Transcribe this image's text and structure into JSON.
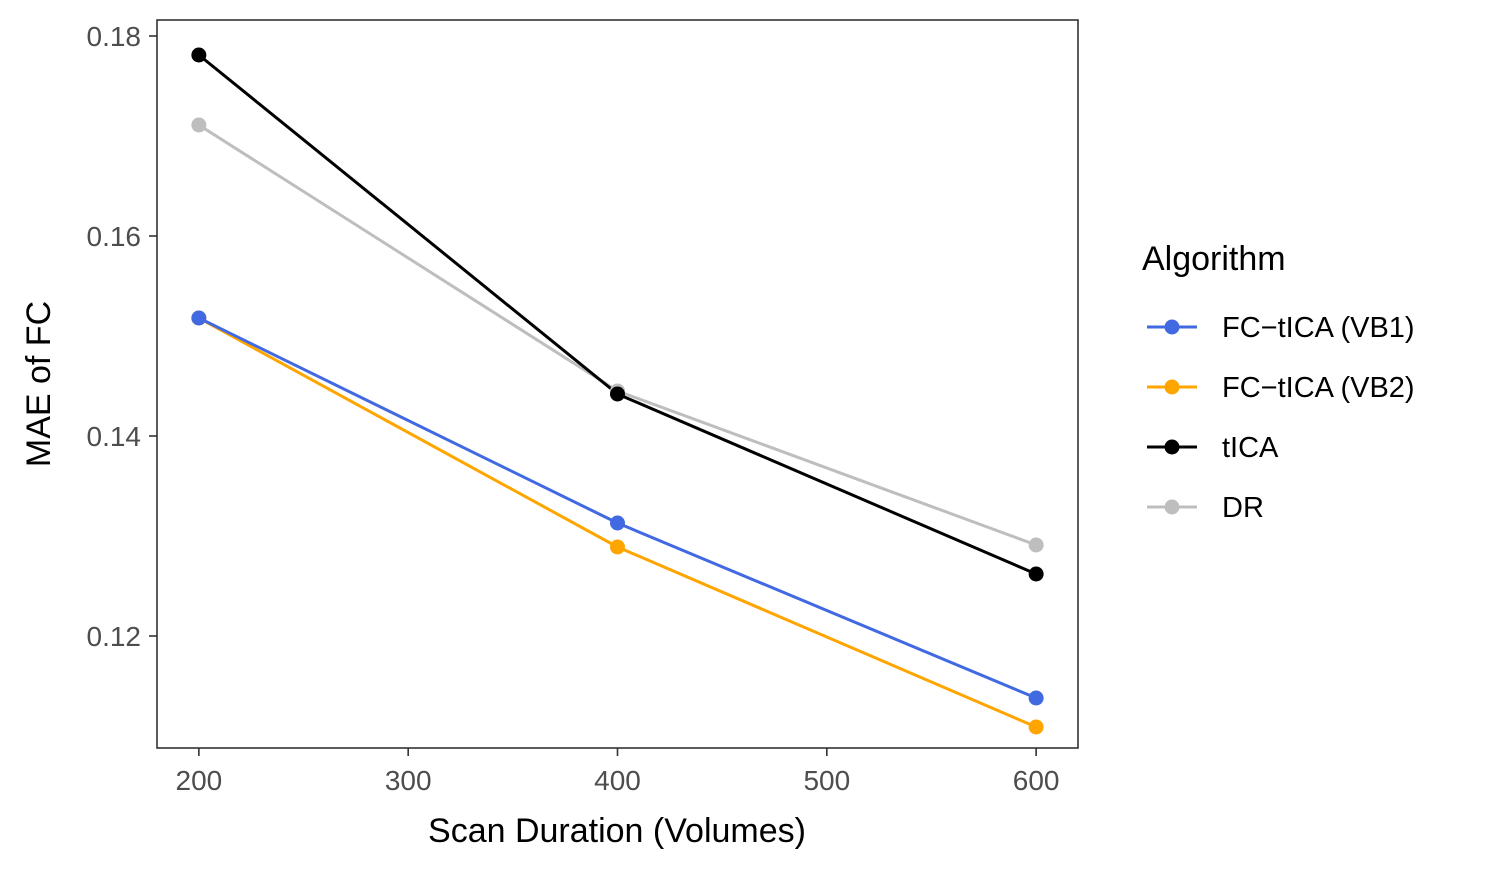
{
  "chart_data": {
    "type": "line",
    "title": "",
    "xlabel": "Scan Duration (Volumes)",
    "ylabel": "MAE of FC",
    "x": [
      200,
      400,
      600
    ],
    "xlim": [
      180,
      620
    ],
    "ylim": [
      0.1088,
      0.1816
    ],
    "xticks": [
      200,
      300,
      400,
      500,
      600
    ],
    "yticks": [
      0.12,
      0.14,
      0.16,
      0.18
    ],
    "xtick_labels": [
      "200",
      "300",
      "400",
      "500",
      "600"
    ],
    "ytick_labels": [
      "0.12",
      "0.14",
      "0.16",
      "0.18"
    ],
    "grid": false,
    "legend": {
      "title": "Algorithm",
      "position": "right"
    },
    "series": [
      {
        "name": "FC−tICA (VB1)",
        "color": "#4169E1",
        "values": [
          0.1518,
          0.1313,
          0.1138
        ]
      },
      {
        "name": "FC−tICA (VB2)",
        "color": "#FFA500",
        "values": [
          0.1518,
          0.1289,
          0.1109
        ]
      },
      {
        "name": "tICA",
        "color": "#000000",
        "values": [
          0.1781,
          0.1442,
          0.1262
        ]
      },
      {
        "name": "DR",
        "color": "#BEBEBE",
        "values": [
          0.1711,
          0.1445,
          0.1291
        ]
      }
    ]
  }
}
